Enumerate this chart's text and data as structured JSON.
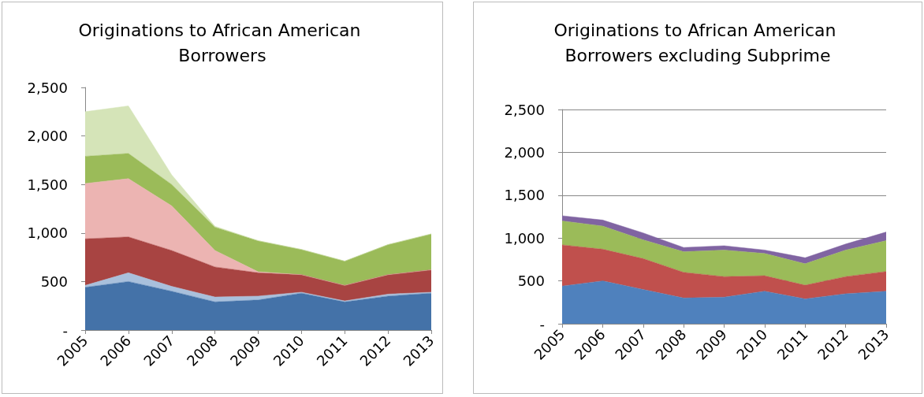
{
  "chart_data": [
    {
      "type": "area",
      "stacked": true,
      "title": "Originations to African American Borrowers",
      "categories": [
        "2005",
        "2006",
        "2007",
        "2008",
        "2009",
        "2010",
        "2011",
        "2012",
        "2013"
      ],
      "series": [
        {
          "color": "#4472a8",
          "values": [
            440,
            500,
            400,
            290,
            310,
            380,
            290,
            350,
            380
          ]
        },
        {
          "color": "#a9c0dc",
          "values": [
            20,
            90,
            50,
            50,
            40,
            10,
            10,
            20,
            10
          ]
        },
        {
          "color": "#a84442",
          "values": [
            480,
            370,
            370,
            310,
            240,
            180,
            160,
            200,
            230
          ]
        },
        {
          "color": "#ecb4b2",
          "values": [
            570,
            600,
            460,
            170,
            10,
            0,
            0,
            0,
            0
          ]
        },
        {
          "color": "#9bbb59",
          "values": [
            280,
            260,
            220,
            240,
            320,
            260,
            250,
            310,
            370
          ]
        },
        {
          "color": "#d5e4b8",
          "values": [
            460,
            490,
            100,
            10,
            0,
            0,
            0,
            0,
            0
          ]
        }
      ],
      "ylim": [
        0,
        2500
      ],
      "yticks": [
        {
          "value": 0,
          "label": "-"
        },
        {
          "value": 500,
          "label": "500"
        },
        {
          "value": 1000,
          "label": "1,000"
        },
        {
          "value": 1500,
          "label": "1,500"
        },
        {
          "value": 2000,
          "label": "2,000"
        },
        {
          "value": 2500,
          "label": "2,500"
        }
      ],
      "grid": false
    },
    {
      "type": "area",
      "stacked": true,
      "title": "Originations to African American Borrowers excluding Subprime",
      "categories": [
        "2005",
        "2006",
        "2007",
        "2008",
        "2009",
        "2010",
        "2011",
        "2012",
        "2013"
      ],
      "series": [
        {
          "color": "#4f81bd",
          "values": [
            440,
            500,
            400,
            300,
            310,
            380,
            290,
            350,
            380
          ]
        },
        {
          "color": "#c0504d",
          "values": [
            480,
            370,
            360,
            300,
            240,
            180,
            160,
            200,
            230
          ]
        },
        {
          "color": "#9bbb59",
          "values": [
            280,
            270,
            220,
            240,
            310,
            260,
            250,
            310,
            360
          ]
        },
        {
          "color": "#8064a2",
          "values": [
            60,
            70,
            80,
            50,
            50,
            40,
            70,
            70,
            100
          ]
        }
      ],
      "ylim": [
        0,
        2500
      ],
      "yticks": [
        {
          "value": 0,
          "label": "-"
        },
        {
          "value": 500,
          "label": "500"
        },
        {
          "value": 1000,
          "label": "1,000"
        },
        {
          "value": 1500,
          "label": "1,500"
        },
        {
          "value": 2000,
          "label": "2,000"
        },
        {
          "value": 2500,
          "label": "2,500"
        }
      ],
      "grid": "y"
    }
  ]
}
